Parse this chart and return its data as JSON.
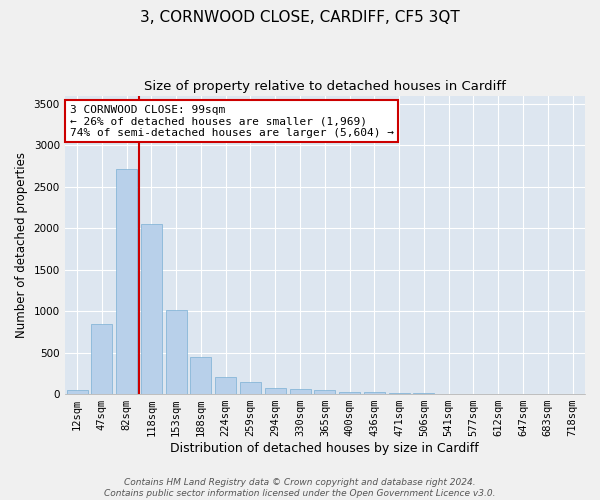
{
  "title": "3, CORNWOOD CLOSE, CARDIFF, CF5 3QT",
  "subtitle": "Size of property relative to detached houses in Cardiff",
  "xlabel": "Distribution of detached houses by size in Cardiff",
  "ylabel": "Number of detached properties",
  "footer_line1": "Contains HM Land Registry data © Crown copyright and database right 2024.",
  "footer_line2": "Contains public sector information licensed under the Open Government Licence v3.0.",
  "annotation_line1": "3 CORNWOOD CLOSE: 99sqm",
  "annotation_line2": "← 26% of detached houses are smaller (1,969)",
  "annotation_line3": "74% of semi-detached houses are larger (5,604) →",
  "categories": [
    "12sqm",
    "47sqm",
    "82sqm",
    "118sqm",
    "153sqm",
    "188sqm",
    "224sqm",
    "259sqm",
    "294sqm",
    "330sqm",
    "365sqm",
    "400sqm",
    "436sqm",
    "471sqm",
    "506sqm",
    "541sqm",
    "577sqm",
    "612sqm",
    "647sqm",
    "683sqm",
    "718sqm"
  ],
  "values": [
    55,
    840,
    2710,
    2050,
    1020,
    450,
    210,
    140,
    75,
    60,
    45,
    30,
    20,
    15,
    8,
    5,
    3,
    2,
    2,
    1,
    1
  ],
  "bar_color": "#b8d0ea",
  "bar_edge_color": "#7aafd4",
  "red_line_color": "#cc0000",
  "annotation_box_color": "#ffffff",
  "annotation_box_edge": "#cc0000",
  "background_color": "#dde6f0",
  "fig_background": "#f0f0f0",
  "ylim": [
    0,
    3600
  ],
  "yticks": [
    0,
    500,
    1000,
    1500,
    2000,
    2500,
    3000,
    3500
  ],
  "title_fontsize": 11,
  "subtitle_fontsize": 9.5,
  "xlabel_fontsize": 9,
  "ylabel_fontsize": 8.5,
  "tick_fontsize": 7.5,
  "annotation_fontsize": 8,
  "footer_fontsize": 6.5
}
